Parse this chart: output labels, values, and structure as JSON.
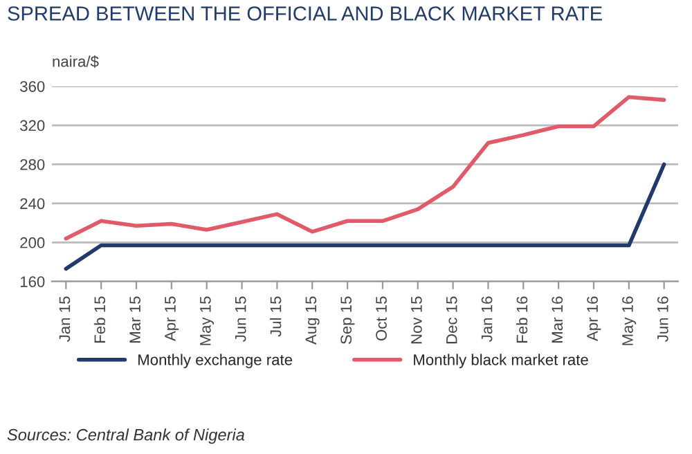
{
  "chart_data": {
    "type": "line",
    "title": "SPREAD BETWEEN THE OFFICIAL AND BLACK MARKET RATE",
    "ylabel": "naira/$",
    "categories": [
      "Jan 15",
      "Feb 15",
      "Mar 15",
      "Apr 15",
      "May 15",
      "Jun 15",
      "Jul 15",
      "Aug 15",
      "Sep 15",
      "Oct 15",
      "Nov 15",
      "Dec 15",
      "Jan 16",
      "Feb 16",
      "Mar 16",
      "Apr 16",
      "May 16",
      "Jun 16"
    ],
    "series": [
      {
        "name": "Monthly exchange rate",
        "color": "#1f3a6b",
        "values": [
          173,
          197,
          197,
          197,
          197,
          197,
          197,
          197,
          197,
          197,
          197,
          197,
          197,
          197,
          197,
          197,
          197,
          280
        ]
      },
      {
        "name": "Monthly black market rate",
        "color": "#e05a6a",
        "values": [
          204,
          222,
          217,
          219,
          213,
          221,
          229,
          211,
          222,
          222,
          234,
          257,
          302,
          310,
          319,
          319,
          349,
          346
        ]
      }
    ],
    "ylim": [
      160,
      360
    ],
    "yticks": [
      160,
      200,
      240,
      280,
      320,
      360
    ],
    "grid": "y",
    "legend": "bottom",
    "annotations": [
      "Sources: Central Bank of Nigeria"
    ]
  }
}
